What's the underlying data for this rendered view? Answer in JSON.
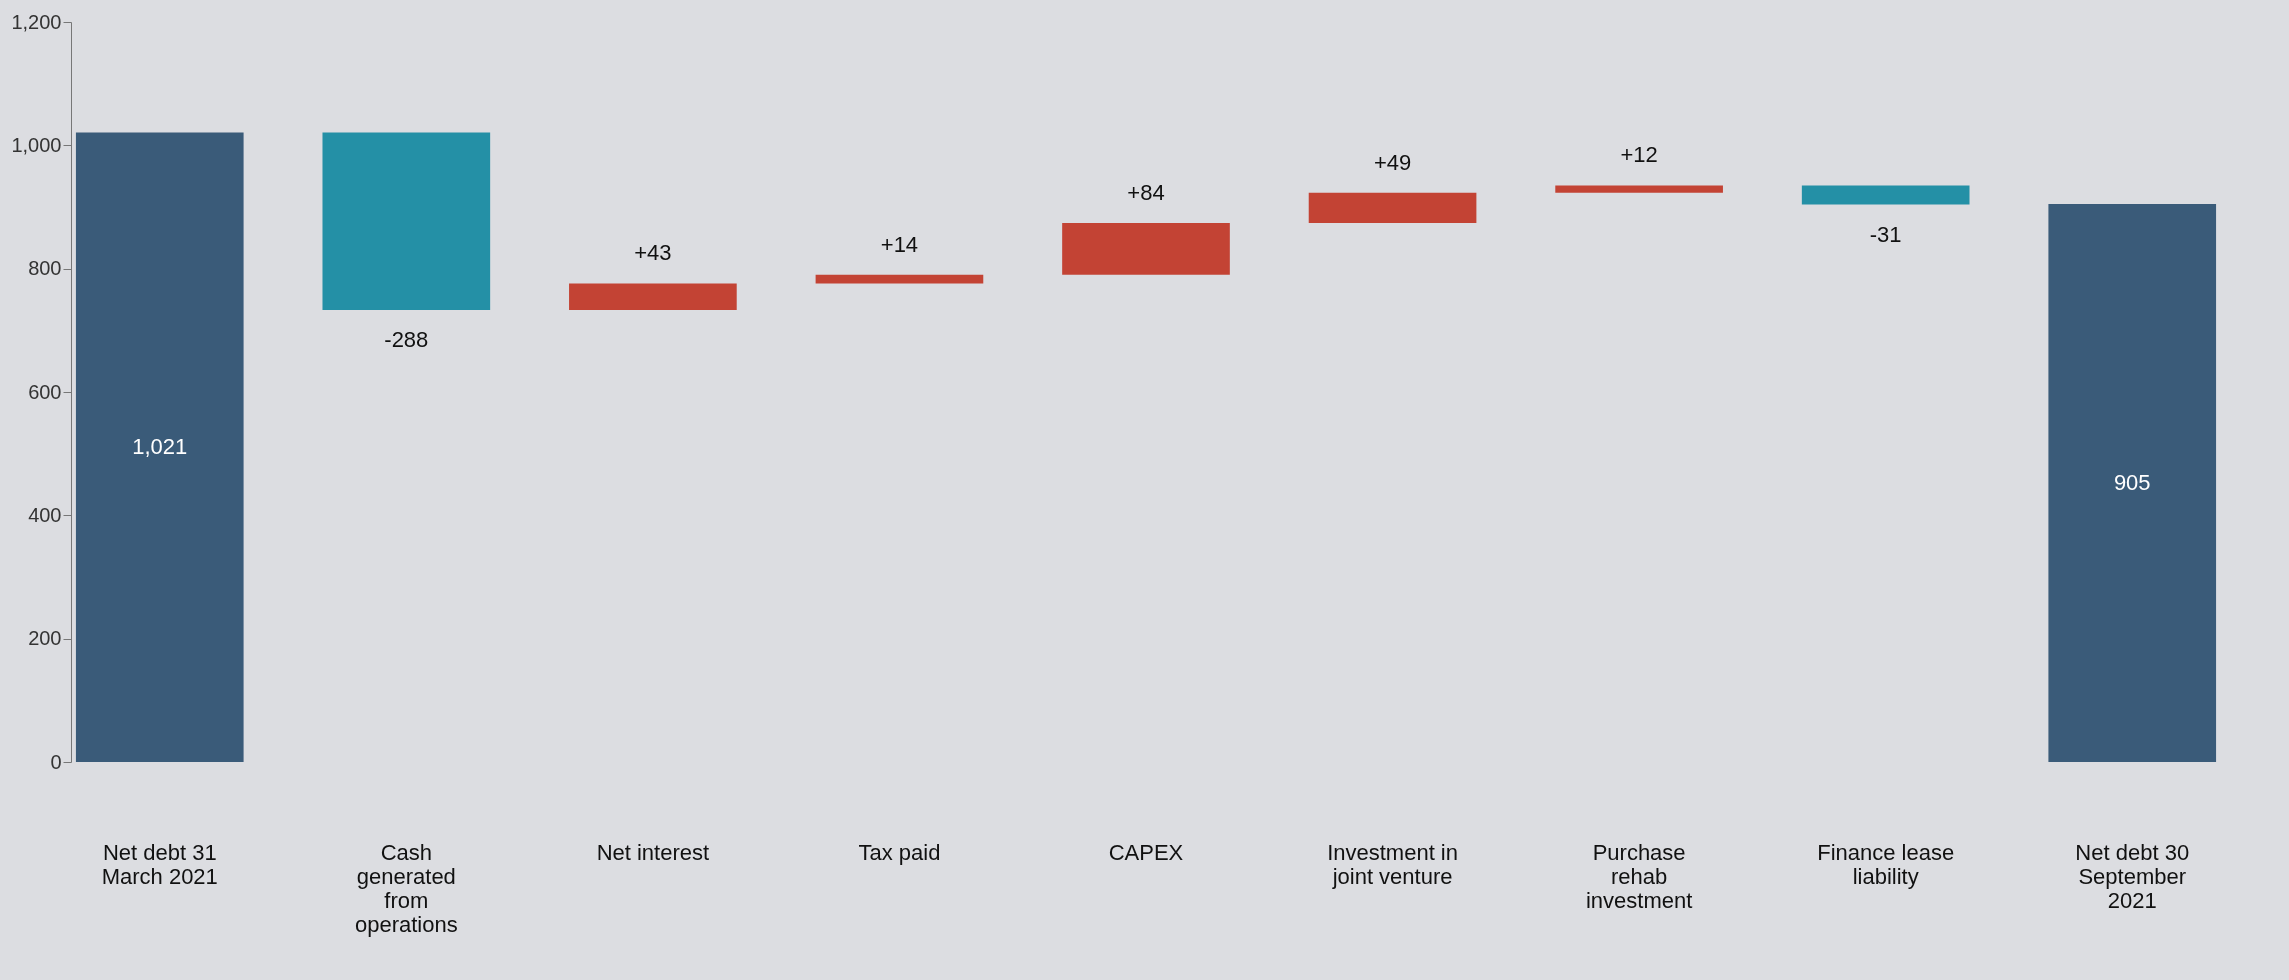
{
  "chart_data": {
    "type": "bar",
    "categories": [
      "Net debt 31 March 2021",
      "Cash generated from operations",
      "Net interest",
      "Tax paid",
      "CAPEX",
      "Investment in joint venture",
      "Purchase rehab investment",
      "Finance lease liability",
      "Net debt 30 September 2021"
    ],
    "values": [
      1021,
      -288,
      43,
      14,
      84,
      49,
      12,
      -31,
      905
    ],
    "base": [
      0,
      1021,
      733,
      776,
      790,
      874,
      923,
      935,
      0
    ],
    "colors": [
      "#3a5b79",
      "#2490a6",
      "#c34334",
      "#c34334",
      "#c34334",
      "#c34334",
      "#c34334",
      "#2490a6",
      "#3a5b79"
    ],
    "value_labels": [
      "1,021",
      "-288",
      "+43",
      "+14",
      "+84",
      "+49",
      "+12",
      "-31",
      "905"
    ],
    "ylim": [
      0,
      1200
    ],
    "yticks": [
      0,
      200,
      400,
      600,
      800,
      {
        "value": 1000,
        "label": "1,000"
      },
      {
        "value": 1200,
        "label": "1,200"
      }
    ]
  }
}
